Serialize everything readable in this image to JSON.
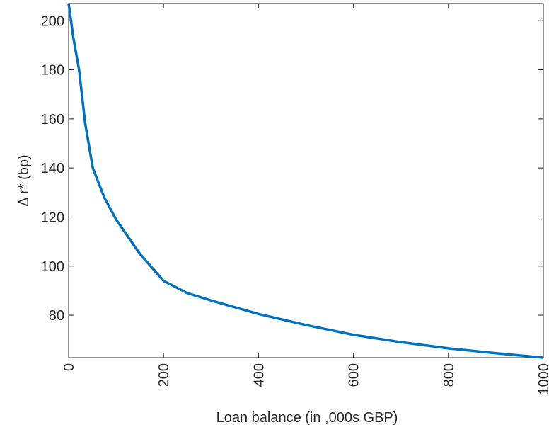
{
  "chart_data": {
    "type": "line",
    "x_label": "Loan balance (in ,000s GBP)",
    "y_label": "Δ r* (bp)",
    "x": [
      0,
      10,
      22,
      35,
      51,
      75,
      100,
      150,
      200,
      250,
      300,
      400,
      500,
      600,
      700,
      800,
      900,
      1000
    ],
    "series": [
      {
        "name": "Δ r*",
        "color": "#0072BD",
        "values": [
          207,
          193,
          180,
          158,
          140,
          128,
          119,
          105,
          94,
          89,
          86,
          80.5,
          76,
          72,
          69,
          66.5,
          64.5,
          62.7
        ]
      }
    ],
    "xlim": [
      0,
      1000
    ],
    "xticks": [
      0,
      200,
      400,
      600,
      800,
      1000
    ],
    "ylim": [
      62.7,
      207
    ],
    "yticks": [
      80,
      100,
      120,
      140,
      160,
      180,
      200
    ],
    "grid": false
  }
}
